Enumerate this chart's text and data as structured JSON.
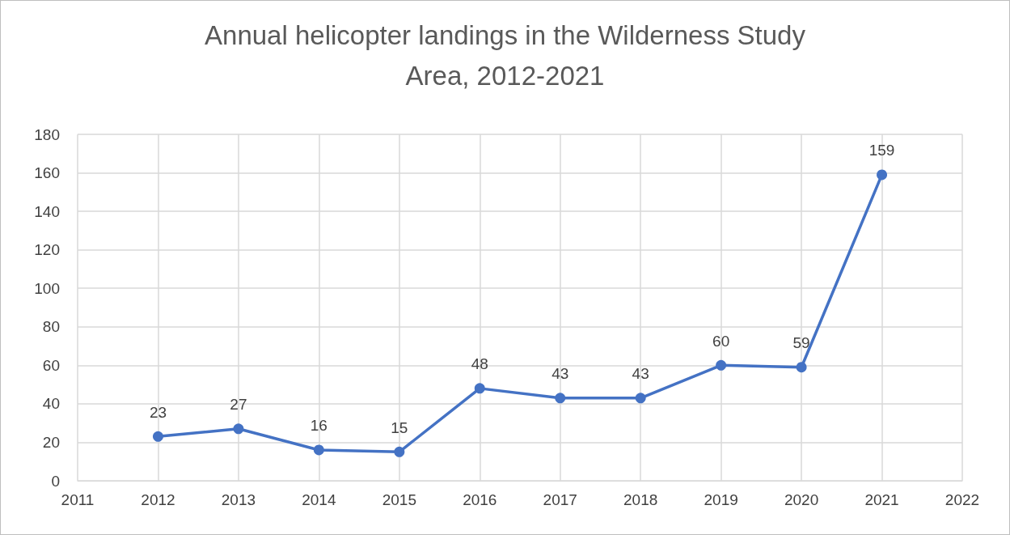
{
  "chart_data": {
    "type": "line",
    "title": "Annual helicopter landings in the Wilderness Study\nArea, 2012-2021",
    "x": [
      2012,
      2013,
      2014,
      2015,
      2016,
      2017,
      2018,
      2019,
      2020,
      2021
    ],
    "series": [
      {
        "color": "#4472c4",
        "values": [
          23,
          27,
          16,
          15,
          48,
          43,
          43,
          60,
          59,
          159
        ]
      }
    ],
    "xlim": [
      2011,
      2022
    ],
    "xticks": [
      2011,
      2012,
      2013,
      2014,
      2015,
      2016,
      2017,
      2018,
      2019,
      2020,
      2021,
      2022
    ],
    "ylim": [
      0,
      180
    ],
    "yticks": [
      0,
      20,
      40,
      60,
      80,
      100,
      120,
      140,
      160,
      180
    ],
    "grid": true,
    "marker": "circle",
    "line_style": "solid",
    "data_labels": true
  }
}
